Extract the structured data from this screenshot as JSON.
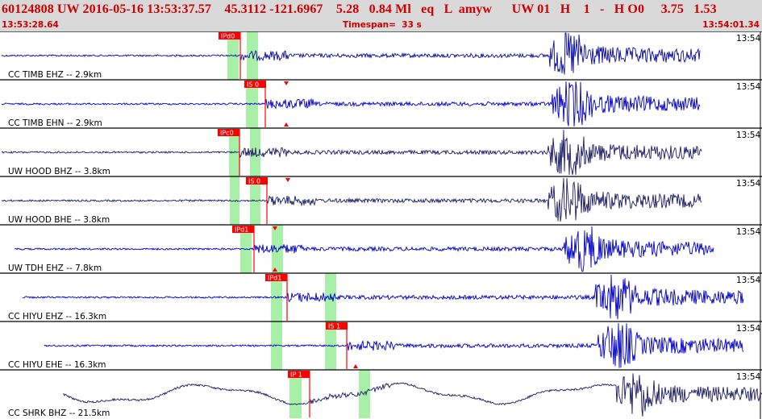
{
  "header": {
    "title": "60124808 UW 2016-05-16 13:53:37.57    45.3112 -121.6967    5.28   0.84 Ml   eq   L  amyw      UW 01   H    1   -   H O0     3.75   1.53",
    "start_time": "13:53:28.64",
    "timespan": "Timespan=  33 s",
    "end_time": "13:54:01.34"
  },
  "colors": {
    "header_bg": "#d9d9d9",
    "header_text": "#cc0000",
    "trace_blue": "#0000cc",
    "trace_dark": "#1a1a66",
    "pick_red": "#ff0000",
    "window_green": "#a8f0a8"
  },
  "traces": [
    {
      "label": "CC TIMB EHZ -- 2.9km",
      "time_label": "13:54",
      "color": "dark_blue",
      "pick_label": "IPd0",
      "pick_type": "P",
      "arrow": "none"
    },
    {
      "label": "CC TIMB EHN -- 2.9km",
      "time_label": "13:54",
      "color": "blue",
      "pick_label": "IS 0",
      "pick_type": "S",
      "arrow": "both"
    },
    {
      "label": "UW HOOD BHZ -- 3.8km",
      "time_label": "13:54",
      "color": "dark",
      "pick_label": "IPc0",
      "pick_type": "P",
      "arrow": "none"
    },
    {
      "label": "UW HOOD BHE -- 3.8km",
      "time_label": "13:54",
      "color": "dark",
      "pick_label": "IS 0",
      "pick_type": "S",
      "arrow": "down"
    },
    {
      "label": "UW TDH EHZ -- 7.8km",
      "time_label": "13:54",
      "color": "blue",
      "pick_label": "IPd1",
      "pick_type": "P",
      "arrow": "both"
    },
    {
      "label": "CC HIYU EHZ -- 16.3km",
      "time_label": "13:54",
      "color": "blue",
      "pick_label": "IPd1",
      "pick_type": "P",
      "arrow": "none"
    },
    {
      "label": "CC HIYU EHE -- 16.3km",
      "time_label": "13:54",
      "color": "blue",
      "pick_label": "IS 1",
      "pick_type": "S",
      "arrow": "up"
    },
    {
      "label": "CC SHRK BHZ -- 21.5km",
      "time_label": "13:54",
      "color": "dark",
      "pick_label": "IP 1",
      "pick_type": "P",
      "arrow": "none"
    }
  ]
}
